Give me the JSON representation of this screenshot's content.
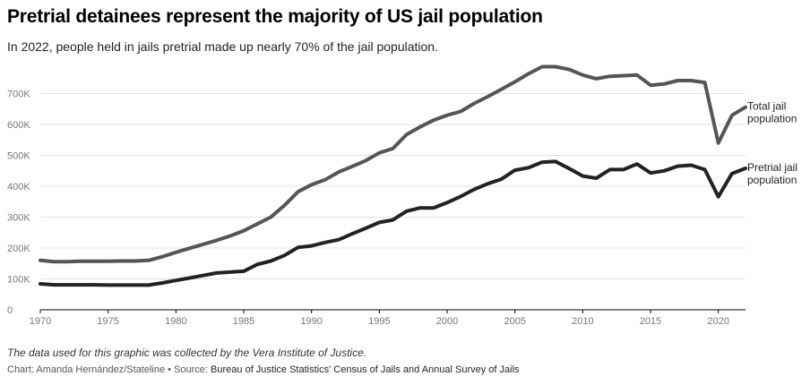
{
  "title": "Pretrial detainees represent the majority of US jail population",
  "subtitle": "In 2022, people held in jails pretrial made up nearly 70% of the jail population.",
  "note": "The data used for this graphic was collected by the Vera Institute of Justice.",
  "credit": {
    "chart_label": "Chart: Amanda Hernández/Stateline • Source: ",
    "source": "Bureau of Justice Statistics' Census of Jails and Annual Survey of Jails"
  },
  "colors": {
    "total": "#555555",
    "pretrial": "#222222",
    "grid": "#e0e0e0",
    "axis": "#000000",
    "tick_label": "#777777"
  },
  "chart_data": {
    "type": "line",
    "x": [
      1970,
      1971,
      1972,
      1973,
      1974,
      1975,
      1976,
      1977,
      1978,
      1979,
      1980,
      1981,
      1982,
      1983,
      1984,
      1985,
      1986,
      1987,
      1988,
      1989,
      1990,
      1991,
      1992,
      1993,
      1994,
      1995,
      1996,
      1997,
      1998,
      1999,
      2000,
      2001,
      2002,
      2003,
      2004,
      2005,
      2006,
      2007,
      2008,
      2009,
      2010,
      2011,
      2012,
      2013,
      2014,
      2015,
      2016,
      2017,
      2018,
      2019,
      2020,
      2021,
      2022
    ],
    "series": [
      {
        "name": "Total jail population",
        "label_lines": [
          "Total jail",
          "population"
        ],
        "values": [
          160000,
          156000,
          156000,
          157000,
          157000,
          157000,
          158000,
          158000,
          160000,
          172000,
          186000,
          199000,
          212000,
          225000,
          239000,
          256000,
          278000,
          300000,
          338000,
          382000,
          405000,
          421000,
          446000,
          464000,
          483000,
          508000,
          522000,
          567000,
          592000,
          614000,
          630000,
          642000,
          668000,
          690000,
          714000,
          738000,
          764000,
          787000,
          787000,
          778000,
          760000,
          748000,
          756000,
          758000,
          760000,
          727000,
          731000,
          742000,
          742000,
          736000,
          540000,
          630000,
          656000
        ]
      },
      {
        "name": "Pretrial jail population",
        "label_lines": [
          "Pretrial jail",
          "population"
        ],
        "values": [
          84000,
          81000,
          81000,
          81000,
          81000,
          80000,
          80000,
          80000,
          80000,
          87000,
          95000,
          103000,
          111000,
          119000,
          122000,
          125000,
          147000,
          158000,
          176000,
          202000,
          207000,
          218000,
          227000,
          246000,
          264000,
          283000,
          291000,
          319000,
          330000,
          330000,
          347000,
          367000,
          390000,
          408000,
          423000,
          452000,
          460000,
          478000,
          480000,
          457000,
          433000,
          426000,
          454000,
          454000,
          472000,
          443000,
          450000,
          465000,
          468000,
          454000,
          366000,
          441000,
          458000
        ]
      }
    ],
    "ylim": [
      0,
      800000
    ],
    "yticks": [
      0,
      100000,
      200000,
      300000,
      400000,
      500000,
      600000,
      700000
    ],
    "ytick_labels": [
      "0",
      "100K",
      "200K",
      "300K",
      "400K",
      "500K",
      "600K",
      "700K"
    ],
    "xticks": [
      1970,
      1975,
      1980,
      1985,
      1990,
      1995,
      2000,
      2005,
      2010,
      2015,
      2020
    ],
    "xlim": [
      1970,
      2022
    ],
    "grid": true,
    "legend": "direct labels at line ends"
  }
}
